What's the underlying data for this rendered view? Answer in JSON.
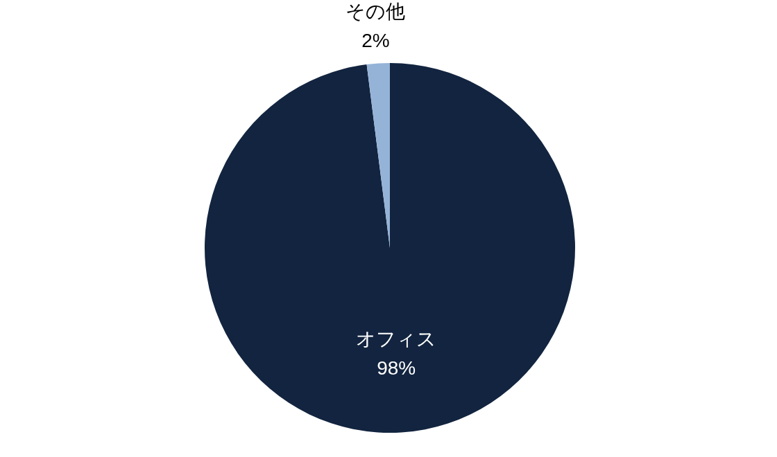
{
  "chart_data": {
    "type": "pie",
    "categories": [
      "オフィス",
      "その他"
    ],
    "values": [
      98,
      2
    ],
    "colors": [
      "#12243f",
      "#95b3d7"
    ],
    "value_labels": [
      "98%",
      "2%"
    ]
  }
}
